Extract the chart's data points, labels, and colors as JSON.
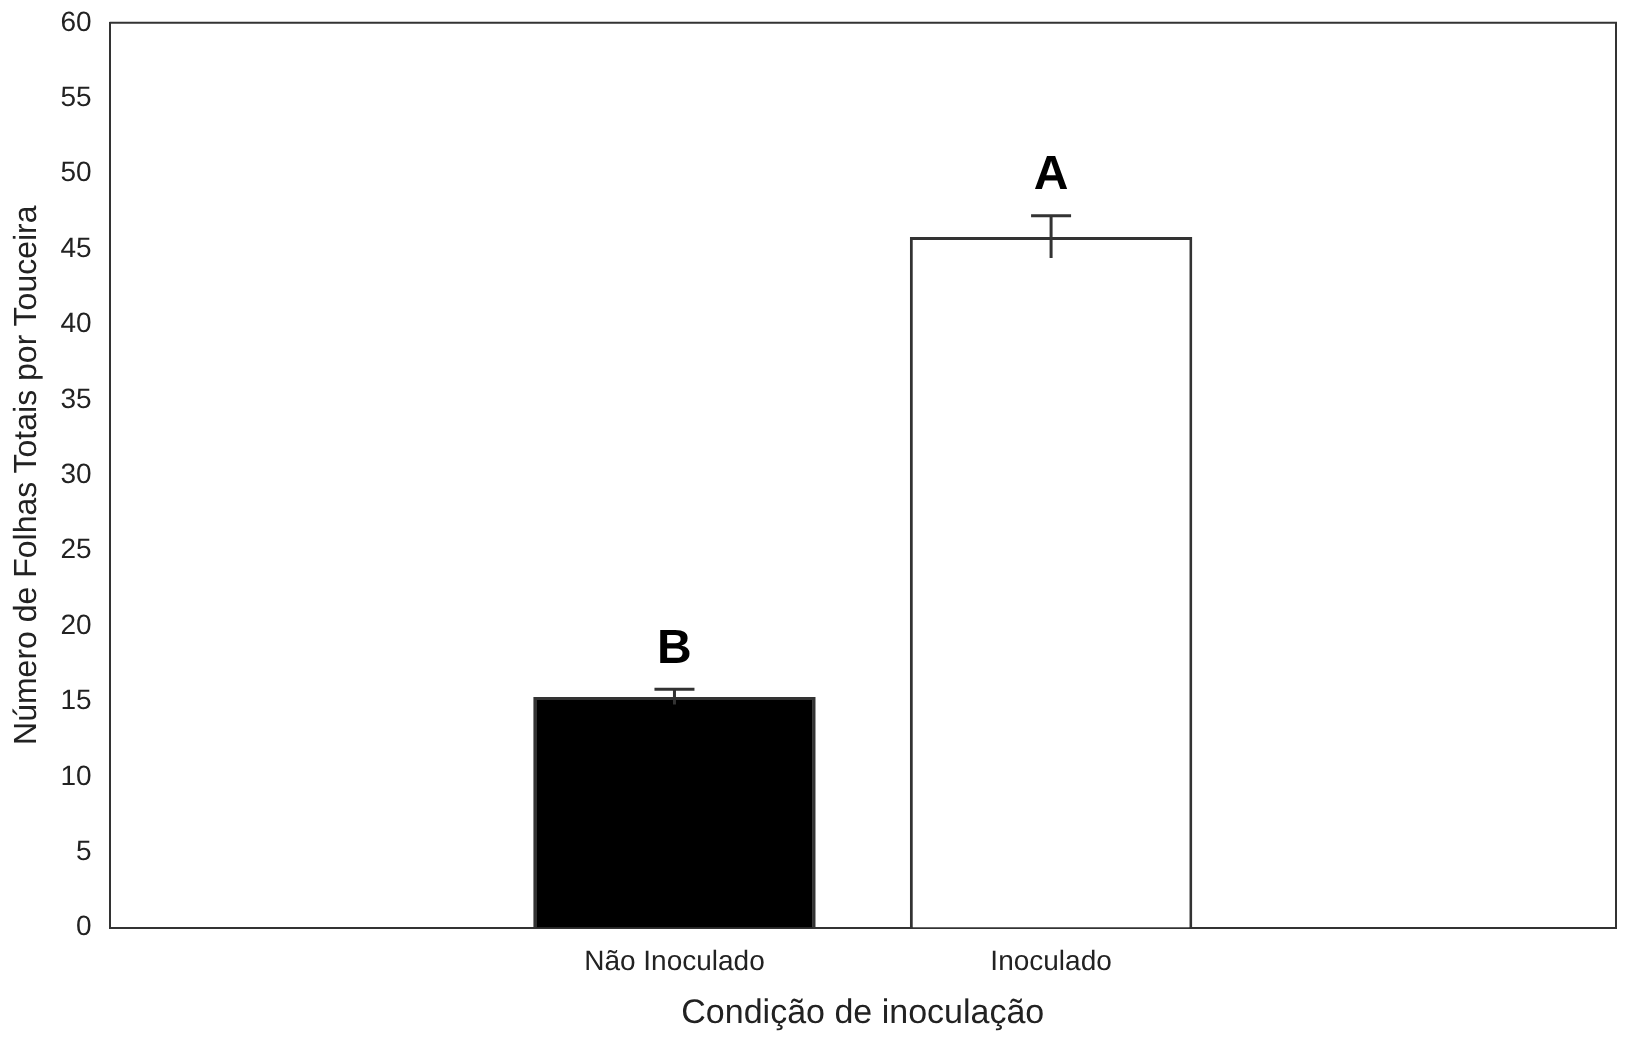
{
  "chart_data": {
    "type": "bar",
    "xlabel": "Condição de inoculação",
    "ylabel": "Número de Folhas Totais por Touceira",
    "categories": [
      "Não Inoculado",
      "Inoculado"
    ],
    "values": [
      15.3,
      45.8
    ],
    "colors": [
      "#000000",
      "#ffffff"
    ],
    "errors": [
      0.5,
      1.4
    ],
    "annotations": [
      "B",
      "A"
    ],
    "ylim": [
      0,
      60
    ],
    "yticks": [
      0,
      5,
      10,
      15,
      20,
      25,
      30,
      35,
      40,
      45,
      50,
      55,
      60
    ],
    "grid": false,
    "legend": false
  }
}
